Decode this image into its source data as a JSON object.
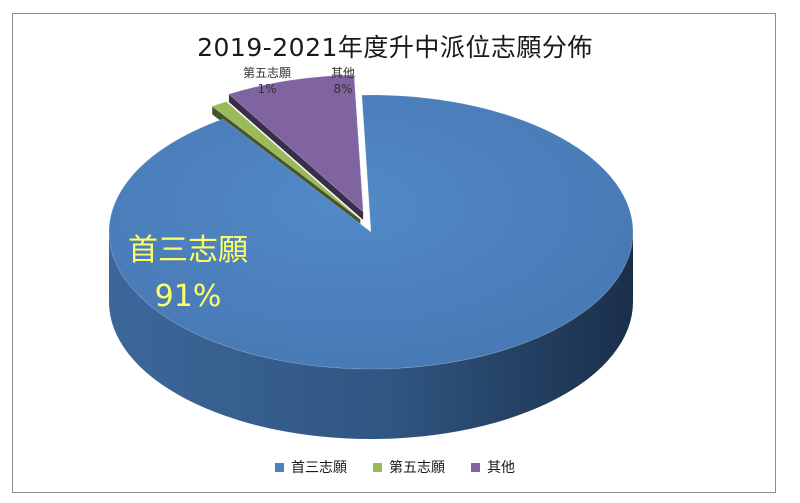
{
  "chart_data": {
    "type": "pie",
    "title": "2019-2021年度升中派位志願分佈",
    "slices": [
      {
        "name": "首三志願",
        "value": 91,
        "label": "91%",
        "color": "#4f81bd"
      },
      {
        "name": "第五志願",
        "value": 1,
        "label": "1%",
        "color": "#9bbb59"
      },
      {
        "name": "其他",
        "value": 8,
        "label": "8%",
        "color": "#8064a2"
      }
    ],
    "label_color_main": "#ffff66",
    "legend_position": "bottom",
    "style": "3d-exploded"
  }
}
